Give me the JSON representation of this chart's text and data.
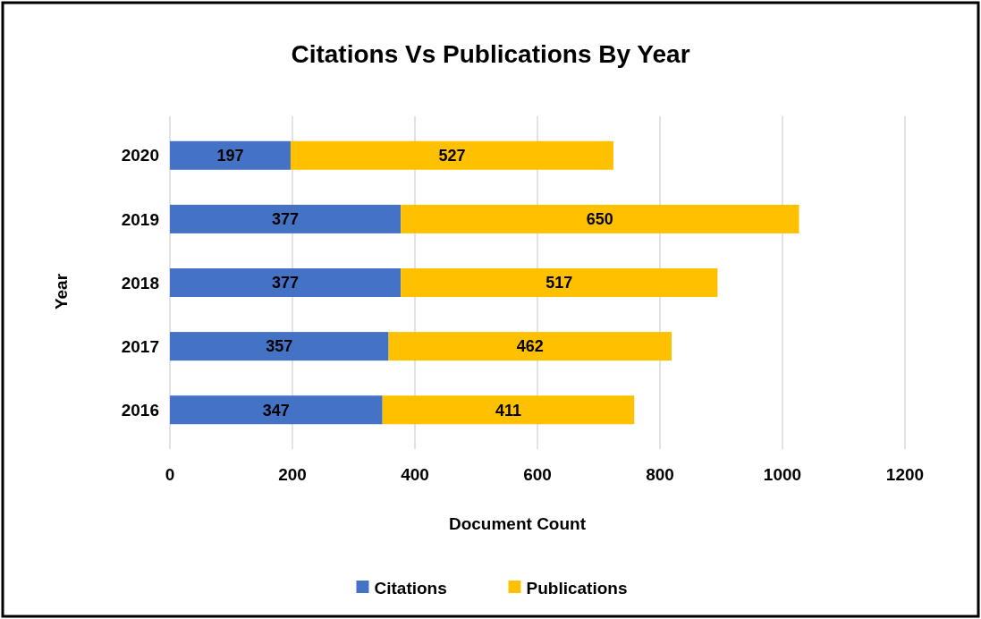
{
  "chart_data": {
    "type": "bar",
    "title": "Citations Vs Publications By Year",
    "xlabel": "Document Count",
    "ylabel": "Year",
    "orientation": "horizontal",
    "stacked": true,
    "categories": [
      "2020",
      "2019",
      "2018",
      "2017",
      "2016"
    ],
    "series": [
      {
        "name": "Citations",
        "color": "#4472c4",
        "values": [
          197,
          377,
          377,
          357,
          347
        ]
      },
      {
        "name": "Publications",
        "color": "#ffc000",
        "values": [
          527,
          650,
          517,
          462,
          411
        ]
      }
    ],
    "xlim": [
      0,
      1200
    ],
    "xticks": [
      0,
      200,
      400,
      600,
      800,
      1000,
      1200
    ],
    "grid": "x",
    "legend": "bottom",
    "data_labels": true
  }
}
